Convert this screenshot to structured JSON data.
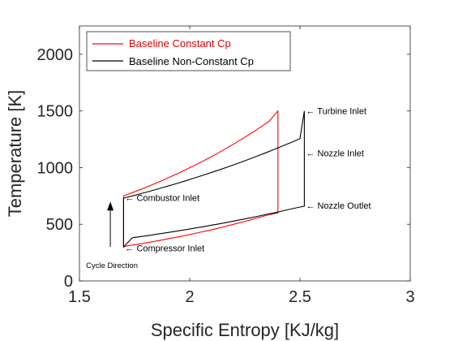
{
  "chart_data": {
    "type": "line",
    "title": "",
    "xlabel": "Specific Entropy [KJ/kg]",
    "ylabel": "Temperature [K]",
    "xlim": [
      1.5,
      3
    ],
    "ylim": [
      0,
      2250
    ],
    "xticks": [
      1.5,
      2,
      2.5,
      3
    ],
    "xtick_labels": [
      "1.5",
      "2",
      "2.5",
      "3"
    ],
    "yticks": [
      0,
      500,
      1000,
      1500,
      2000
    ],
    "ytick_labels": [
      "0",
      "500",
      "1000",
      "1500",
      "2000"
    ],
    "grid": false,
    "legend_position": "top-left",
    "series": [
      {
        "name": "Baseline Constant Cp",
        "color": "#ff0000",
        "x": [
          1.7,
          1.72,
          1.76,
          1.8,
          1.84,
          1.88,
          1.92,
          1.96,
          2.0,
          2.04,
          2.08,
          2.12,
          2.16,
          2.2,
          2.24,
          2.28,
          2.32,
          2.36,
          2.4,
          2.4,
          2.36,
          2.32,
          2.28,
          2.24,
          2.2,
          2.16,
          2.12,
          2.08,
          2.04,
          2.0,
          1.96,
          1.92,
          1.88,
          1.84,
          1.8,
          1.76,
          1.72,
          1.7,
          1.7
        ],
        "y": [
          750,
          764,
          794,
          825,
          857,
          891,
          925,
          961,
          999,
          1037,
          1078,
          1120,
          1163,
          1209,
          1256,
          1305,
          1356,
          1409,
          1500,
          600,
          585,
          563,
          541,
          520,
          500,
          480,
          461,
          443,
          426,
          409,
          393,
          378,
          363,
          349,
          335,
          322,
          310,
          300,
          750
        ]
      },
      {
        "name": "Baseline Non-Constant Cp",
        "color": "#000000",
        "x": [
          1.7,
          1.74,
          1.78,
          1.82,
          1.86,
          1.9,
          1.94,
          1.98,
          2.02,
          2.06,
          2.1,
          2.14,
          2.18,
          2.22,
          2.26,
          2.3,
          2.34,
          2.38,
          2.42,
          2.46,
          2.5,
          2.52,
          2.52,
          2.5,
          2.46,
          2.42,
          2.38,
          2.34,
          2.3,
          2.26,
          2.22,
          2.18,
          2.14,
          2.1,
          2.06,
          2.02,
          1.98,
          1.94,
          1.9,
          1.86,
          1.82,
          1.78,
          1.74,
          1.7,
          1.7
        ],
        "y": [
          730,
          750,
          771,
          792,
          814,
          836,
          859,
          883,
          907,
          932,
          958,
          984,
          1011,
          1039,
          1068,
          1097,
          1127,
          1158,
          1190,
          1222,
          1256,
          1500,
          660,
          652,
          635,
          617,
          600,
          584,
          567,
          551,
          536,
          521,
          506,
          492,
          478,
          465,
          452,
          439,
          427,
          415,
          403,
          392,
          381,
          300,
          730
        ]
      }
    ],
    "annotations": [
      {
        "text": "← Turbine Inlet",
        "x": 2.52,
        "y": 1500
      },
      {
        "text": "← Nozzle Inlet",
        "x": 2.52,
        "y": 1130
      },
      {
        "text": "← Nozzle Outlet",
        "x": 2.52,
        "y": 665
      },
      {
        "text": "← Combustor Inlet",
        "x": 1.7,
        "y": 735
      },
      {
        "text": "← Compressor Inlet",
        "x": 1.7,
        "y": 290
      }
    ],
    "direction_arrow": {
      "label": "Cycle Direction",
      "x": 1.64,
      "y_from": 300,
      "y_to": 700
    }
  }
}
